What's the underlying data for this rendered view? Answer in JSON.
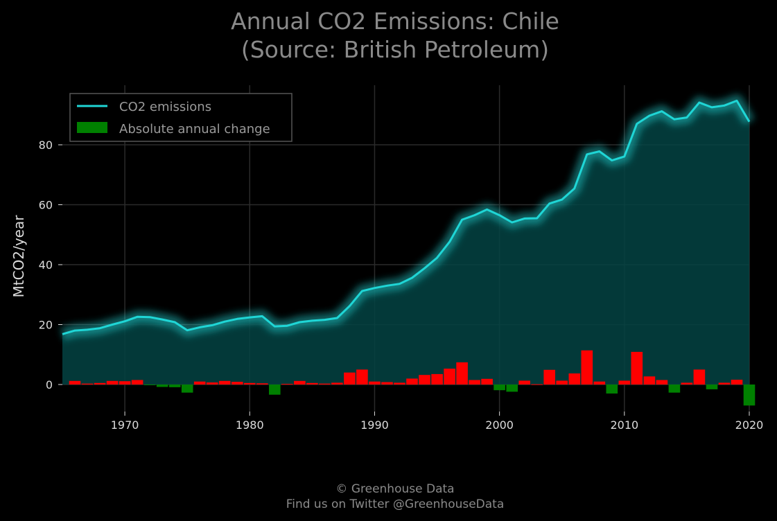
{
  "chart_data": {
    "type": "line",
    "title_line1": "Annual CO2 Emissions: Chile",
    "title_line2": "(Source: British Petroleum)",
    "xlabel": "",
    "ylabel": "MtCO2/year",
    "xlim": [
      1965,
      2020
    ],
    "ylim": [
      -9,
      100
    ],
    "x_ticks": [
      1970,
      1980,
      1990,
      2000,
      2010,
      2020
    ],
    "y_ticks": [
      0,
      20,
      40,
      60,
      80
    ],
    "grid": true,
    "legend_position": "top-left",
    "colors": {
      "background": "#000000",
      "line": "#1fd6d6",
      "area": "#044343",
      "increase": "#ff0000",
      "decrease": "#008000",
      "grid": "#2b2b2b",
      "text": "#dcdcdc",
      "title": "#8a8a8a"
    },
    "series": [
      {
        "name": "CO2 emissions",
        "x": [
          1965,
          1966,
          1967,
          1968,
          1969,
          1970,
          1971,
          1972,
          1973,
          1974,
          1975,
          1976,
          1977,
          1978,
          1979,
          1980,
          1981,
          1982,
          1983,
          1984,
          1985,
          1986,
          1987,
          1988,
          1989,
          1990,
          1991,
          1992,
          1993,
          1994,
          1995,
          1996,
          1997,
          1998,
          1999,
          2000,
          2001,
          2002,
          2003,
          2004,
          2005,
          2006,
          2007,
          2008,
          2009,
          2010,
          2011,
          2012,
          2013,
          2014,
          2015,
          2016,
          2017,
          2018,
          2019,
          2020
        ],
        "values": [
          16.8,
          18.0,
          18.3,
          18.8,
          20.0,
          21.1,
          22.6,
          22.5,
          21.7,
          20.8,
          18.1,
          19.1,
          19.8,
          21.0,
          21.9,
          22.4,
          22.8,
          19.4,
          19.6,
          20.8,
          21.3,
          21.6,
          22.2,
          26.2,
          31.2,
          32.2,
          33.0,
          33.6,
          35.6,
          38.8,
          42.3,
          47.6,
          55.0,
          56.5,
          58.4,
          56.5,
          54.1,
          55.4,
          55.5,
          60.4,
          61.7,
          65.4,
          76.8,
          77.8,
          74.8,
          76.1,
          87.0,
          89.7,
          91.2,
          88.5,
          89.1,
          94.1,
          92.5,
          93.1,
          94.7,
          87.7
        ]
      },
      {
        "name": "Absolute annual change",
        "x": [
          1966,
          1967,
          1968,
          1969,
          1970,
          1971,
          1972,
          1973,
          1974,
          1975,
          1976,
          1977,
          1978,
          1979,
          1980,
          1981,
          1982,
          1983,
          1984,
          1985,
          1986,
          1987,
          1988,
          1989,
          1990,
          1991,
          1992,
          1993,
          1994,
          1995,
          1996,
          1997,
          1998,
          1999,
          2000,
          2001,
          2002,
          2003,
          2004,
          2005,
          2006,
          2007,
          2008,
          2009,
          2010,
          2011,
          2012,
          2013,
          2014,
          2015,
          2016,
          2017,
          2018,
          2019,
          2020
        ],
        "values": [
          1.2,
          0.3,
          0.5,
          1.2,
          1.1,
          1.5,
          -0.1,
          -0.8,
          -0.9,
          -2.7,
          1.0,
          0.7,
          1.2,
          0.9,
          0.5,
          0.4,
          -3.4,
          0.2,
          1.2,
          0.5,
          0.3,
          0.6,
          4.0,
          5.0,
          1.0,
          0.8,
          0.6,
          2.0,
          3.2,
          3.5,
          5.3,
          7.4,
          1.5,
          1.9,
          -1.9,
          -2.4,
          1.3,
          0.1,
          4.9,
          1.3,
          3.7,
          11.4,
          1.0,
          -3.0,
          1.3,
          10.9,
          2.7,
          1.5,
          -2.7,
          0.6,
          5.0,
          -1.6,
          0.6,
          1.6,
          -7.0
        ]
      }
    ]
  },
  "footer": {
    "line1": "© Greenhouse Data",
    "line2": "Find us on Twitter @GreenhouseData"
  }
}
